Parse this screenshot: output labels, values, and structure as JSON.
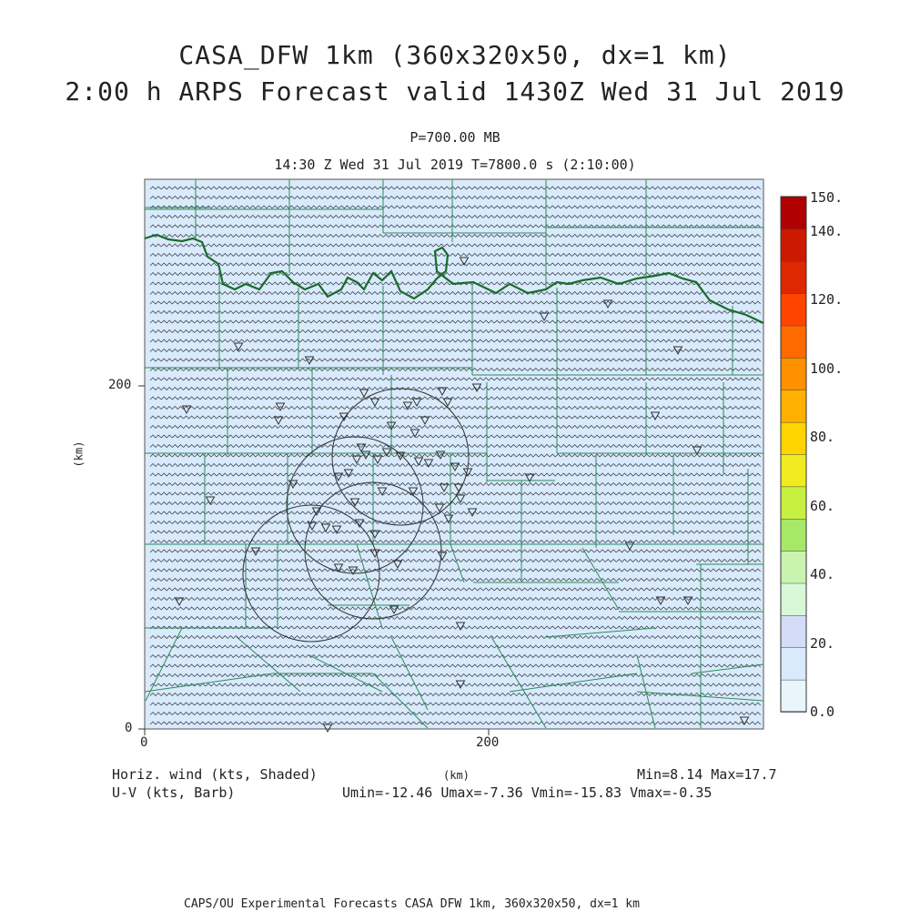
{
  "header": {
    "title_line1": "CASA_DFW 1km (360x320x50, dx=1 km)",
    "title_line2": "2:00 h ARPS Forecast valid 1430Z Wed 31 Jul 2019",
    "level": "P=700.00 MB",
    "time_line": "14:30 Z Wed 31 Jul 2019    T=7800.0 s (2:10:00)"
  },
  "axes": {
    "y_label": "(km)",
    "x_label": "(km)",
    "y_ticks": [
      "200",
      "0"
    ],
    "x_ticks": [
      "0",
      "200"
    ]
  },
  "colorbar": {
    "labels": [
      "150.",
      "140.",
      "120.",
      "100.",
      "80.",
      "60.",
      "40.",
      "20.",
      "0.0"
    ],
    "colors": [
      "#b00000",
      "#cc1a00",
      "#e02800",
      "#ff4400",
      "#ff6a00",
      "#ff9000",
      "#ffb000",
      "#ffd400",
      "#f0ec20",
      "#c8f040",
      "#a8e868",
      "#c8f4b0",
      "#d8f8d8",
      "#d4dcf8",
      "#d8eafc",
      "#e8f6fc"
    ]
  },
  "footer": {
    "left1": "Horiz. wind (kts, Shaded)",
    "left2": "U-V (kts, Barb)",
    "center": "(km)",
    "minmax": "Min=8.14 Max=17.7",
    "uv_range": "Umin=-12.46 Umax=-7.36 Vmin=-15.83 Vmax=-0.35",
    "credit": "CAPS/OU Experimental Forecasts  CASA DFW 1km, 360x320x50, dx=1 km"
  },
  "map": {
    "fill_color": "#d8eafc",
    "county_line_color": "#2e8b57",
    "state_line_color": "#1a6b2a",
    "barb_color": "#333333",
    "marker_icon": "radar-site-triangle-icon",
    "range_ring_icon": "radar-range-circle-icon"
  }
}
